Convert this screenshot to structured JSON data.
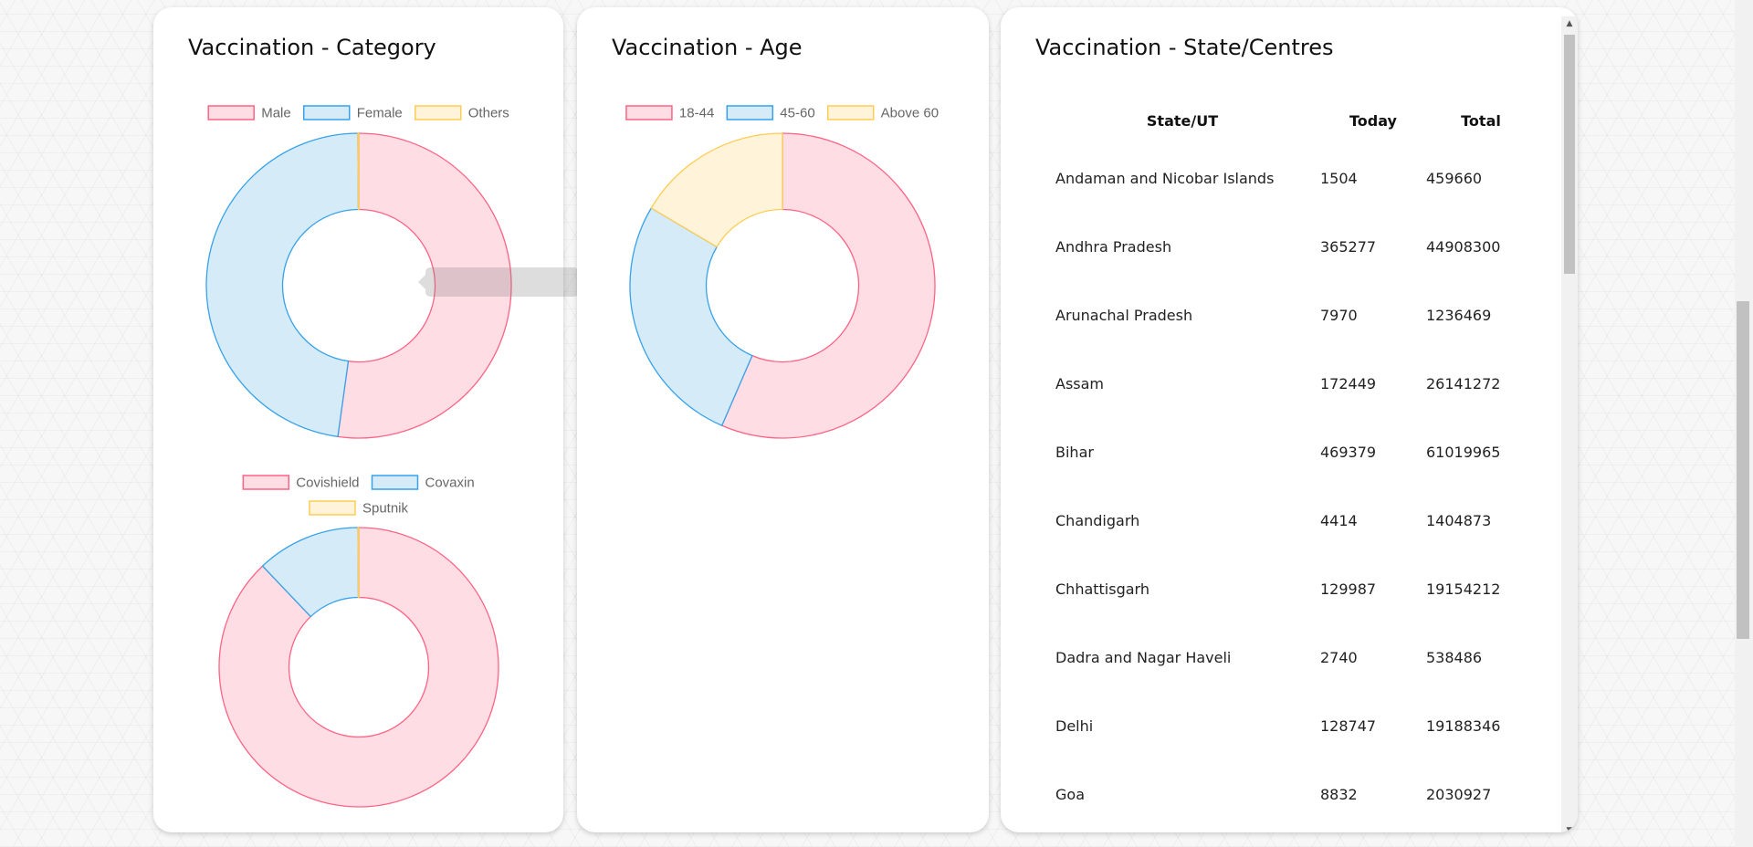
{
  "cards": {
    "category": {
      "title": "Vaccination - Category"
    },
    "age": {
      "title": "Vaccination - Age"
    },
    "state": {
      "title": "Vaccination - State/Centres"
    }
  },
  "chart_data": [
    {
      "type": "pie",
      "id": "gender",
      "categories": [
        "Male",
        "Female",
        "Others"
      ],
      "values": [
        52.2,
        47.7,
        0.1
      ],
      "colors": {
        "fill": [
          "#ffdde4",
          "#d6ebf8",
          "#fff3d9"
        ],
        "stroke": [
          "#ff6384",
          "#36a2eb",
          "#ffcd56"
        ]
      },
      "legend": "top"
    },
    {
      "type": "pie",
      "id": "vaccine",
      "categories": [
        "Covishield",
        "Covaxin",
        "Sputnik"
      ],
      "values": [
        87.9,
        12.0,
        0.1
      ],
      "colors": {
        "fill": [
          "#ffdde4",
          "#d6ebf8",
          "#fff3d9"
        ],
        "stroke": [
          "#ff6384",
          "#36a2eb",
          "#ffcd56"
        ]
      },
      "legend": "top"
    },
    {
      "type": "pie",
      "id": "age",
      "categories": [
        "18-44",
        "45-60",
        "Above 60"
      ],
      "values": [
        56.5,
        27.0,
        16.5
      ],
      "colors": {
        "fill": [
          "#ffdde4",
          "#d6ebf8",
          "#fff3d9"
        ],
        "stroke": [
          "#ff6384",
          "#36a2eb",
          "#ffcd56"
        ]
      },
      "legend": "top"
    },
    {
      "type": "table",
      "id": "states",
      "headers": [
        "State/UT",
        "Today",
        "Total"
      ],
      "rows": [
        [
          "Andaman and Nicobar Islands",
          "1504",
          "459660"
        ],
        [
          "Andhra Pradesh",
          "365277",
          "44908300"
        ],
        [
          "Arunachal Pradesh",
          "7970",
          "1236469"
        ],
        [
          "Assam",
          "172449",
          "26141272"
        ],
        [
          "Bihar",
          "469379",
          "61019965"
        ],
        [
          "Chandigarh",
          "4414",
          "1404873"
        ],
        [
          "Chhattisgarh",
          "129987",
          "19154212"
        ],
        [
          "Dadra and Nagar Haveli",
          "2740",
          "538486"
        ],
        [
          "Delhi",
          "128747",
          "19188346"
        ],
        [
          "Goa",
          "8832",
          "2030927"
        ]
      ]
    }
  ]
}
